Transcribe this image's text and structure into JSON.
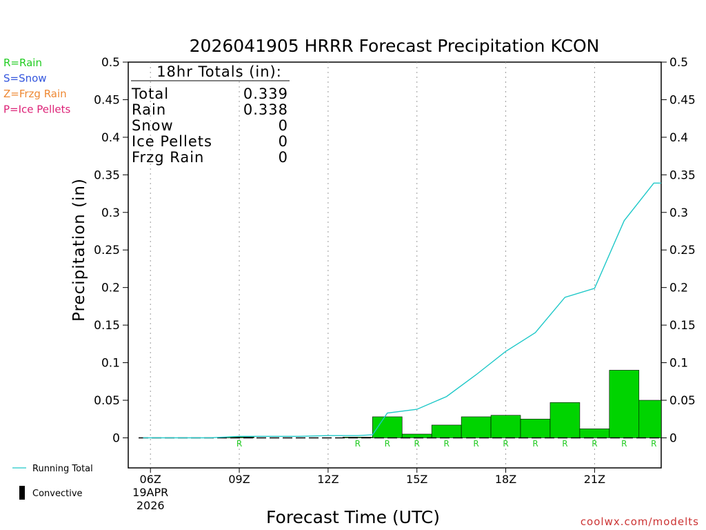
{
  "chart_data": {
    "type": "bar",
    "title": "2026041905 HRRR Forecast Precipitation KCON",
    "xlabel": "Forecast Time (UTC)",
    "ylabel": "Precipitation (in)",
    "ylim": [
      -0.04,
      0.5
    ],
    "yticks": [
      "0",
      "0.05",
      "0.1",
      "0.15",
      "0.2",
      "0.25",
      "0.3",
      "0.35",
      "0.4",
      "0.45",
      "0.5"
    ],
    "ytick_values": [
      0,
      0.05,
      0.1,
      0.15,
      0.2,
      0.25,
      0.3,
      0.35,
      0.4,
      0.45,
      0.5
    ],
    "xlim": [
      5.25,
      23.25
    ],
    "xticks": [
      {
        "hour": 6,
        "label": "06Z",
        "sub1": "19APR",
        "sub2": "2026"
      },
      {
        "hour": 9,
        "label": "09Z"
      },
      {
        "hour": 12,
        "label": "12Z"
      },
      {
        "hour": 15,
        "label": "15Z"
      },
      {
        "hour": 18,
        "label": "18Z"
      },
      {
        "hour": 21,
        "label": "21Z"
      }
    ],
    "grid": "vertical dotted at 3-hourly ticks",
    "bars": [
      {
        "hour": 6,
        "value": 0.0,
        "type": ""
      },
      {
        "hour": 7,
        "value": 0.0,
        "type": ""
      },
      {
        "hour": 8,
        "value": 0.0,
        "type": ""
      },
      {
        "hour": 9,
        "value": 0.001,
        "type": "R"
      },
      {
        "hour": 10,
        "value": 0.0,
        "type": ""
      },
      {
        "hour": 11,
        "value": 0.0,
        "type": ""
      },
      {
        "hour": 12,
        "value": 0.0,
        "type": ""
      },
      {
        "hour": 13,
        "value": 0.001,
        "type": "R"
      },
      {
        "hour": 14,
        "value": 0.028,
        "type": "R"
      },
      {
        "hour": 15,
        "value": 0.005,
        "type": "R"
      },
      {
        "hour": 16,
        "value": 0.017,
        "type": "R"
      },
      {
        "hour": 17,
        "value": 0.028,
        "type": "R"
      },
      {
        "hour": 18,
        "value": 0.03,
        "type": "R"
      },
      {
        "hour": 19,
        "value": 0.025,
        "type": "R"
      },
      {
        "hour": 20,
        "value": 0.047,
        "type": "R"
      },
      {
        "hour": 21,
        "value": 0.012,
        "type": "R"
      },
      {
        "hour": 22,
        "value": 0.09,
        "type": "R"
      },
      {
        "hour": 23,
        "value": 0.05,
        "type": "R"
      }
    ],
    "running_total": {
      "name": "Running Total",
      "color": "#1ec8c8",
      "x": [
        5.75,
        6,
        7,
        8,
        9,
        10,
        11,
        12,
        13,
        13.5,
        14,
        15,
        16,
        17,
        18,
        19,
        20,
        21,
        22,
        23,
        23.25
      ],
      "y": [
        0.0,
        0.0,
        0.0,
        0.0,
        0.002,
        0.002,
        0.002,
        0.003,
        0.003,
        0.004,
        0.033,
        0.038,
        0.055,
        0.084,
        0.115,
        0.14,
        0.187,
        0.199,
        0.289,
        0.339,
        0.339
      ]
    },
    "totals": {
      "header": "18hr Totals (in):",
      "rows": [
        {
          "label": "Total",
          "value": "0.339"
        },
        {
          "label": "Rain",
          "value": "0.338"
        },
        {
          "label": "Snow",
          "value": "0"
        },
        {
          "label": "Ice Pellets",
          "value": "0"
        },
        {
          "label": "Frzg Rain",
          "value": "0"
        }
      ]
    },
    "type_legend": [
      {
        "text": "R=Rain",
        "color": "#22cc22"
      },
      {
        "text": "S=Snow",
        "color": "#3355dd"
      },
      {
        "text": "Z=Frzg Rain",
        "color": "#ee8833"
      },
      {
        "text": "P=Ice Pellets",
        "color": "#dd2277"
      }
    ],
    "series_legend": [
      {
        "text": "Running Total",
        "kind": "line",
        "color": "#1ec8c8"
      },
      {
        "text": "Convective",
        "kind": "block",
        "color": "#000000"
      }
    ],
    "colors": {
      "bar": "#00d400",
      "rain_label": "#22cc22",
      "line": "#1ec8c8"
    }
  },
  "credit": "coolwx.com/modelts"
}
